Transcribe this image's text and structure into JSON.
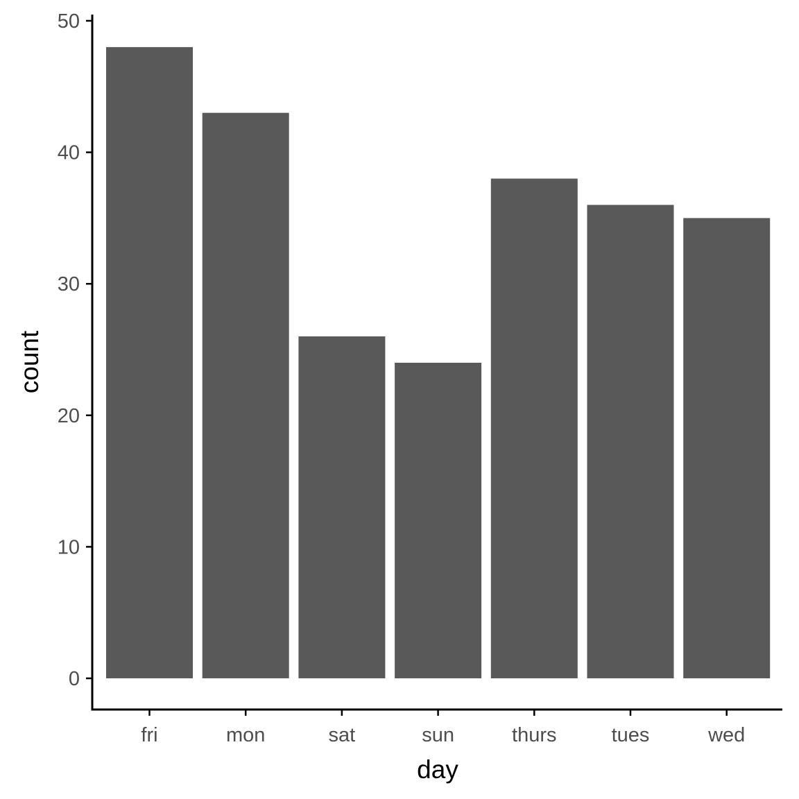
{
  "chart_data": {
    "type": "bar",
    "categories": [
      "fri",
      "mon",
      "sat",
      "sun",
      "thurs",
      "tues",
      "wed"
    ],
    "values": [
      48,
      43,
      26,
      24,
      38,
      36,
      35
    ],
    "xlabel": "day",
    "ylabel": "count",
    "ylim": [
      0,
      50
    ],
    "yticks": [
      0,
      10,
      20,
      30,
      40,
      50
    ],
    "grid": false,
    "legend": "none",
    "colors": {
      "bar": "#595959",
      "axis": "#000000",
      "tick_text": "#4d4d4d"
    }
  }
}
